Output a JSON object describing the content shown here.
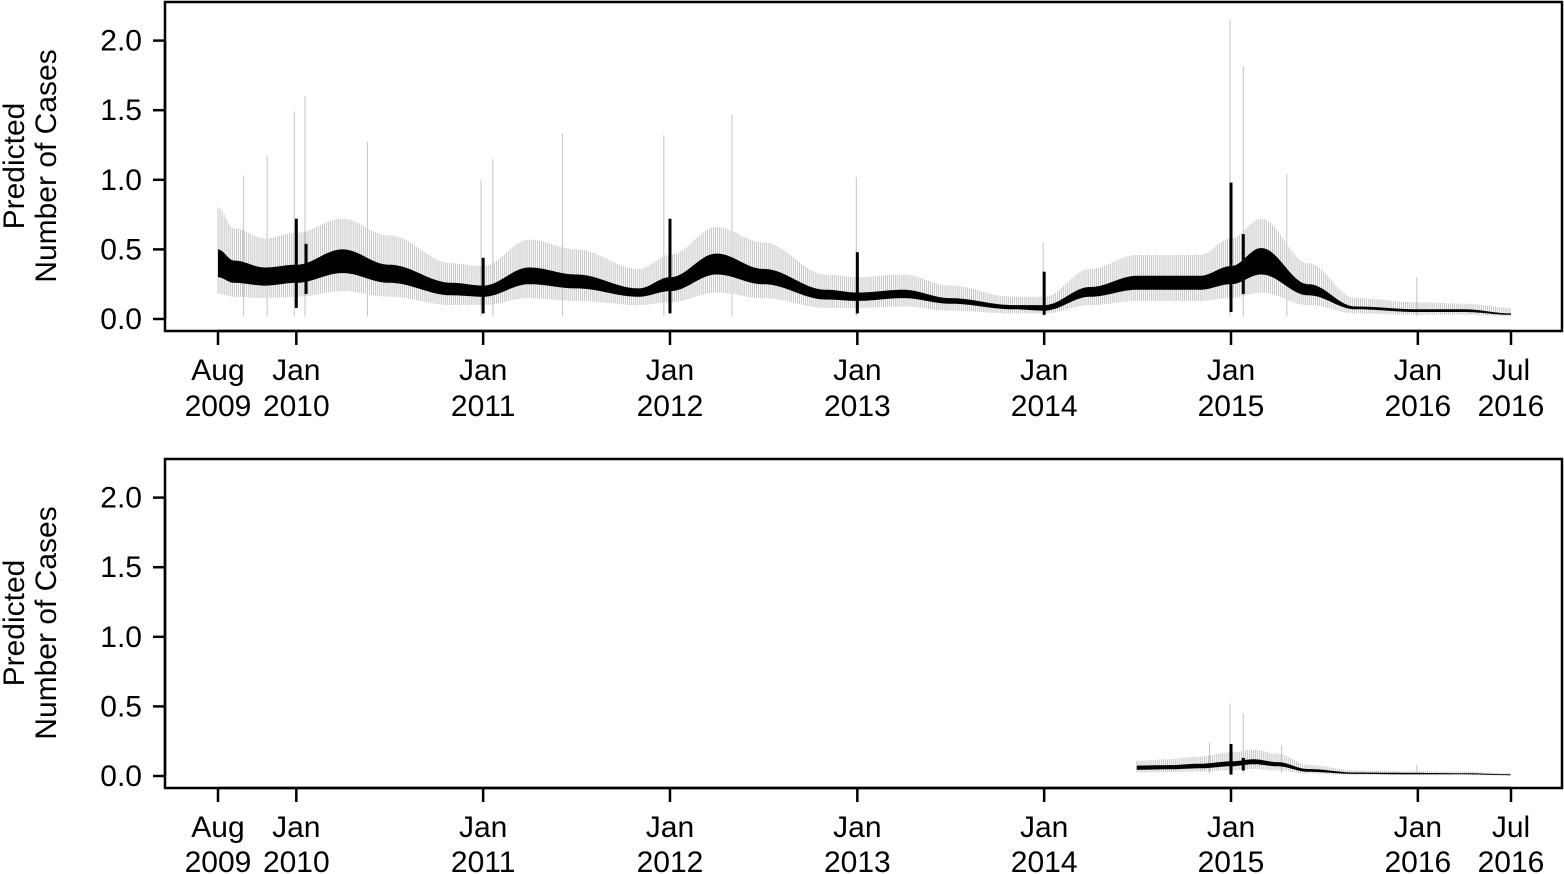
{
  "chart_data": [
    {
      "type": "area",
      "title": "",
      "ylabel": [
        "Predicted",
        "Number of Cases"
      ],
      "xlabel": "",
      "ylim": [
        0,
        2.3
      ],
      "yticks": [
        0.0,
        0.5,
        1.0,
        1.5,
        2.0
      ],
      "ytick_labels": [
        "0.0",
        "0.5",
        "1.0",
        "1.5",
        "2.0"
      ],
      "xlim": [
        "2009-08-01",
        "2016-07-01"
      ],
      "xticks": [
        {
          "date": "2009-08-01",
          "line1": "Aug",
          "line2": "2009"
        },
        {
          "date": "2010-01-01",
          "line1": "Jan",
          "line2": "2010"
        },
        {
          "date": "2011-01-01",
          "line1": "Jan",
          "line2": "2011"
        },
        {
          "date": "2012-01-01",
          "line1": "Jan",
          "line2": "2012"
        },
        {
          "date": "2013-01-01",
          "line1": "Jan",
          "line2": "2013"
        },
        {
          "date": "2014-01-01",
          "line1": "Jan",
          "line2": "2014"
        },
        {
          "date": "2015-01-01",
          "line1": "Jan",
          "line2": "2015"
        },
        {
          "date": "2016-01-01",
          "line1": "Jan",
          "line2": "2016"
        },
        {
          "date": "2016-07-01",
          "line1": "Jul",
          "line2": "2016"
        }
      ],
      "grid": false,
      "series": [
        {
          "band_color": "#000000",
          "ci_color": "#c4c4c4",
          "x": [
            "2009-08-01",
            "2009-09-01",
            "2009-11-01",
            "2010-01-01",
            "2010-04-01",
            "2010-07-01",
            "2010-11-01",
            "2011-01-01",
            "2011-04-01",
            "2011-07-01",
            "2011-11-01",
            "2012-01-01",
            "2012-04-01",
            "2012-07-01",
            "2012-11-01",
            "2013-01-01",
            "2013-04-01",
            "2013-07-01",
            "2013-11-01",
            "2014-01-01",
            "2014-04-01",
            "2014-07-01",
            "2014-11-01",
            "2015-01-01",
            "2015-03-01",
            "2015-06-01",
            "2015-09-01",
            "2016-01-01",
            "2016-04-01",
            "2016-07-01"
          ],
          "lower": [
            0.3,
            0.26,
            0.24,
            0.26,
            0.33,
            0.26,
            0.17,
            0.16,
            0.25,
            0.22,
            0.16,
            0.2,
            0.32,
            0.25,
            0.14,
            0.13,
            0.15,
            0.11,
            0.07,
            0.06,
            0.16,
            0.21,
            0.21,
            0.25,
            0.32,
            0.17,
            0.07,
            0.05,
            0.05,
            0.03
          ],
          "upper": [
            0.5,
            0.42,
            0.37,
            0.39,
            0.5,
            0.39,
            0.26,
            0.24,
            0.37,
            0.32,
            0.22,
            0.3,
            0.47,
            0.36,
            0.21,
            0.19,
            0.21,
            0.15,
            0.1,
            0.1,
            0.23,
            0.31,
            0.31,
            0.38,
            0.51,
            0.25,
            0.09,
            0.07,
            0.07,
            0.04
          ],
          "ci_lower": [
            0.18,
            0.16,
            0.15,
            0.16,
            0.2,
            0.16,
            0.1,
            0.1,
            0.15,
            0.13,
            0.1,
            0.12,
            0.19,
            0.15,
            0.08,
            0.08,
            0.09,
            0.06,
            0.04,
            0.04,
            0.1,
            0.13,
            0.13,
            0.15,
            0.19,
            0.1,
            0.04,
            0.03,
            0.03,
            0.02
          ],
          "ci_upper": [
            0.8,
            0.65,
            0.58,
            0.62,
            0.72,
            0.6,
            0.4,
            0.38,
            0.57,
            0.5,
            0.36,
            0.46,
            0.66,
            0.55,
            0.32,
            0.3,
            0.32,
            0.24,
            0.16,
            0.16,
            0.36,
            0.46,
            0.46,
            0.58,
            0.72,
            0.4,
            0.15,
            0.12,
            0.11,
            0.08
          ],
          "spikes": [
            {
              "date": "2010-01-01",
              "low": 0.08,
              "high": 0.72
            },
            {
              "date": "2010-01-20",
              "low": 0.18,
              "high": 0.54
            },
            {
              "date": "2011-01-01",
              "low": 0.04,
              "high": 0.44
            },
            {
              "date": "2012-01-01",
              "low": 0.04,
              "high": 0.72
            },
            {
              "date": "2013-01-01",
              "low": 0.04,
              "high": 0.48
            },
            {
              "date": "2014-01-01",
              "low": 0.03,
              "high": 0.34
            },
            {
              "date": "2015-01-01",
              "low": 0.05,
              "high": 0.98
            },
            {
              "date": "2015-01-25",
              "low": 0.18,
              "high": 0.61
            }
          ],
          "ci_spikes": [
            {
              "date": "2009-09-20",
              "high": 1.03
            },
            {
              "date": "2009-11-05",
              "high": 1.17
            },
            {
              "date": "2009-12-28",
              "high": 1.49
            },
            {
              "date": "2010-01-18",
              "high": 1.6
            },
            {
              "date": "2010-05-20",
              "high": 1.27
            },
            {
              "date": "2010-12-28",
              "high": 1.0
            },
            {
              "date": "2011-01-20",
              "high": 1.15
            },
            {
              "date": "2011-06-05",
              "high": 1.33
            },
            {
              "date": "2011-12-20",
              "high": 1.32
            },
            {
              "date": "2012-05-01",
              "high": 1.47
            },
            {
              "date": "2012-12-30",
              "high": 1.02
            },
            {
              "date": "2013-12-30",
              "high": 0.55
            },
            {
              "date": "2014-12-30",
              "high": 2.15
            },
            {
              "date": "2015-01-25",
              "high": 1.82
            },
            {
              "date": "2015-04-20",
              "high": 1.04
            },
            {
              "date": "2015-12-30",
              "high": 0.3
            }
          ]
        }
      ]
    },
    {
      "type": "area",
      "title": "",
      "ylabel": [
        "Predicted",
        "Number of Cases"
      ],
      "xlabel": "",
      "ylim": [
        0,
        2.3
      ],
      "yticks": [
        0.0,
        0.5,
        1.0,
        1.5,
        2.0
      ],
      "ytick_labels": [
        "0.0",
        "0.5",
        "1.0",
        "1.5",
        "2.0"
      ],
      "xlim": [
        "2009-08-01",
        "2016-07-01"
      ],
      "xticks": [
        {
          "date": "2009-08-01",
          "line1": "Aug",
          "line2": "2009"
        },
        {
          "date": "2010-01-01",
          "line1": "Jan",
          "line2": "2010"
        },
        {
          "date": "2011-01-01",
          "line1": "Jan",
          "line2": "2011"
        },
        {
          "date": "2012-01-01",
          "line1": "Jan",
          "line2": "2012"
        },
        {
          "date": "2013-01-01",
          "line1": "Jan",
          "line2": "2013"
        },
        {
          "date": "2014-01-01",
          "line1": "Jan",
          "line2": "2014"
        },
        {
          "date": "2015-01-01",
          "line1": "Jan",
          "line2": "2015"
        },
        {
          "date": "2016-01-01",
          "line1": "Jan",
          "line2": "2016"
        },
        {
          "date": "2016-07-01",
          "line1": "Jul",
          "line2": "2016"
        }
      ],
      "grid": false,
      "series": [
        {
          "band_color": "#000000",
          "ci_color": "#c4c4c4",
          "x": [
            "2014-07-01",
            "2014-09-01",
            "2014-11-01",
            "2015-01-01",
            "2015-02-15",
            "2015-04-01",
            "2015-06-01",
            "2015-09-01",
            "2016-01-01",
            "2016-04-01",
            "2016-07-01"
          ],
          "lower": [
            0.045,
            0.048,
            0.055,
            0.07,
            0.085,
            0.07,
            0.03,
            0.015,
            0.012,
            0.012,
            0.006
          ],
          "upper": [
            0.075,
            0.078,
            0.088,
            0.105,
            0.12,
            0.1,
            0.05,
            0.025,
            0.022,
            0.02,
            0.012
          ],
          "ci_lower": [
            0.025,
            0.028,
            0.032,
            0.04,
            0.05,
            0.04,
            0.018,
            0.008,
            0.006,
            0.006,
            0.003
          ],
          "ci_upper": [
            0.11,
            0.12,
            0.14,
            0.17,
            0.19,
            0.16,
            0.08,
            0.04,
            0.035,
            0.032,
            0.02
          ],
          "spikes": [
            {
              "date": "2015-01-01",
              "low": 0.01,
              "high": 0.23
            },
            {
              "date": "2015-01-25",
              "low": 0.04,
              "high": 0.13
            }
          ],
          "ci_spikes": [
            {
              "date": "2014-12-30",
              "high": 0.52
            },
            {
              "date": "2015-01-25",
              "high": 0.45
            },
            {
              "date": "2014-11-20",
              "high": 0.24
            },
            {
              "date": "2015-04-10",
              "high": 0.22
            },
            {
              "date": "2015-12-30",
              "high": 0.08
            }
          ]
        }
      ]
    }
  ]
}
